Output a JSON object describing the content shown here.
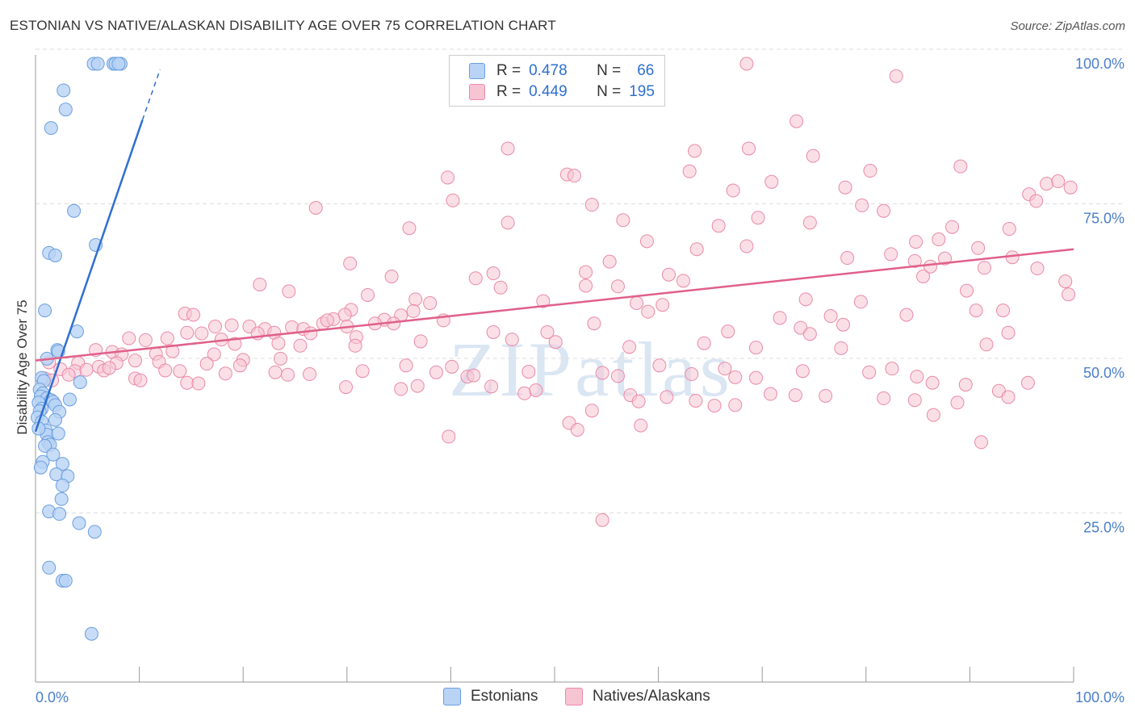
{
  "title": "ESTONIAN VS NATIVE/ALASKAN DISABILITY AGE OVER 75 CORRELATION CHART",
  "source": "Source: ZipAtlas.com",
  "watermark": "ZIPatlas",
  "colors": {
    "blue_fill": "#b9d3f5",
    "blue_stroke": "#6a9fe0",
    "blue_line": "#2f6fd0",
    "pink_fill": "#f7c4d4",
    "pink_stroke": "#e98aa8",
    "pink_line": "#e0608a",
    "grid": "#dddddd",
    "axis_text": "#4a7fc9"
  },
  "legend": {
    "rows": [
      {
        "r_label": "R =",
        "r_value": "0.478",
        "n_label": "N =",
        "n_value": "66"
      },
      {
        "r_label": "R =",
        "r_value": "0.449",
        "n_label": "N =",
        "n_value": "195"
      }
    ]
  },
  "bottom_legend": {
    "series1": "Estonians",
    "series2": "Natives/Alaskans"
  },
  "chart_data": {
    "type": "scatter",
    "title": "ESTONIAN VS NATIVE/ALASKAN DISABILITY AGE OVER 75 CORRELATION CHART",
    "xlabel": "",
    "ylabel": "Disability Age Over 75",
    "xlim": [
      0,
      100
    ],
    "ylim": [
      0,
      100
    ],
    "x_tick_labels": {
      "left": "0.0%",
      "right": "100.0%"
    },
    "y_ticks": [
      {
        "value": 100,
        "label": "100.0%"
      },
      {
        "value": 75,
        "label": "75.0%"
      },
      {
        "value": 50,
        "label": "50.0%"
      },
      {
        "value": 25,
        "label": "25.0%"
      }
    ],
    "grid": true,
    "series": [
      {
        "name": "Estonians",
        "trend": {
          "x0": 0,
          "y0": 40.5,
          "x1": 10.3,
          "y1": 90.9,
          "dash_to": {
            "x": 12.0,
            "y": 99.1
          }
        },
        "points": [
          [
            5.6,
            100
          ],
          [
            6.0,
            100
          ],
          [
            7.5,
            100
          ],
          [
            7.7,
            100
          ],
          [
            8.2,
            100
          ],
          [
            8.0,
            100
          ],
          [
            2.7,
            95.7
          ],
          [
            2.9,
            92.6
          ],
          [
            1.5,
            89.6
          ],
          [
            3.7,
            76.2
          ],
          [
            1.3,
            69.4
          ],
          [
            1.9,
            69.0
          ],
          [
            5.8,
            70.7
          ],
          [
            0.9,
            60.1
          ],
          [
            4.0,
            56.7
          ],
          [
            1.1,
            52.3
          ],
          [
            2.1,
            53.7
          ],
          [
            2.2,
            53.5
          ],
          [
            0.6,
            49.2
          ],
          [
            0.8,
            48.7
          ],
          [
            4.3,
            48.5
          ],
          [
            0.4,
            47.3
          ],
          [
            0.7,
            46.7
          ],
          [
            0.5,
            46.2
          ],
          [
            1.1,
            45.9
          ],
          [
            1.5,
            45.6
          ],
          [
            0.3,
            45.2
          ],
          [
            1.7,
            45.3
          ],
          [
            3.3,
            45.7
          ],
          [
            1.9,
            44.8
          ],
          [
            0.6,
            44.2
          ],
          [
            0.4,
            43.8
          ],
          [
            2.3,
            43.7
          ],
          [
            0.2,
            42.8
          ],
          [
            0.6,
            42.1
          ],
          [
            1.9,
            42.4
          ],
          [
            1.0,
            40.7
          ],
          [
            1.1,
            40.0
          ],
          [
            2.2,
            40.2
          ],
          [
            0.3,
            41.0
          ],
          [
            1.2,
            38.8
          ],
          [
            1.4,
            38.4
          ],
          [
            0.9,
            38.2
          ],
          [
            1.7,
            36.8
          ],
          [
            0.7,
            35.6
          ],
          [
            0.5,
            34.7
          ],
          [
            2.6,
            35.3
          ],
          [
            2.0,
            33.6
          ],
          [
            3.1,
            33.3
          ],
          [
            2.6,
            31.8
          ],
          [
            2.5,
            29.6
          ],
          [
            1.3,
            27.6
          ],
          [
            2.3,
            27.2
          ],
          [
            4.2,
            25.7
          ],
          [
            5.7,
            24.3
          ],
          [
            1.3,
            18.5
          ],
          [
            2.6,
            16.4
          ],
          [
            2.9,
            16.4
          ],
          [
            5.4,
            7.8
          ]
        ]
      },
      {
        "name": "Natives/Alaskans",
        "trend": {
          "x0": 0,
          "y0": 52.0,
          "x1": 100,
          "y1": 70.0
        },
        "points": [
          [
            68.5,
            100
          ],
          [
            82.9,
            98
          ],
          [
            73.3,
            90.7
          ],
          [
            45.5,
            86.3
          ],
          [
            68.7,
            86.3
          ],
          [
            63.5,
            85.9
          ],
          [
            74.9,
            85.1
          ],
          [
            80.4,
            82.7
          ],
          [
            89.1,
            83.4
          ],
          [
            51.2,
            82.1
          ],
          [
            51.9,
            81.9
          ],
          [
            63.0,
            82.6
          ],
          [
            70.9,
            80.9
          ],
          [
            39.7,
            81.6
          ],
          [
            97.4,
            80.6
          ],
          [
            98.5,
            81.0
          ],
          [
            99.7,
            80.0
          ],
          [
            67.2,
            79.5
          ],
          [
            78.0,
            80.0
          ],
          [
            95.7,
            78.9
          ],
          [
            40.2,
            77.9
          ],
          [
            53.6,
            77.2
          ],
          [
            79.6,
            77.1
          ],
          [
            27.0,
            76.7
          ],
          [
            81.7,
            76.2
          ],
          [
            96.4,
            77.8
          ],
          [
            69.6,
            75.1
          ],
          [
            56.6,
            74.7
          ],
          [
            45.5,
            74.3
          ],
          [
            74.6,
            74.3
          ],
          [
            93.8,
            73.3
          ],
          [
            36.0,
            73.4
          ],
          [
            65.8,
            73.8
          ],
          [
            88.3,
            73.6
          ],
          [
            84.8,
            71.2
          ],
          [
            87.0,
            71.6
          ],
          [
            58.9,
            71.3
          ],
          [
            63.7,
            70.0
          ],
          [
            68.5,
            70.5
          ],
          [
            82.4,
            69.2
          ],
          [
            90.8,
            70.2
          ],
          [
            94.1,
            68.7
          ],
          [
            78.2,
            68.6
          ],
          [
            84.7,
            68.1
          ],
          [
            87.6,
            68.5
          ],
          [
            55.3,
            68.0
          ],
          [
            30.3,
            67.7
          ],
          [
            53.0,
            66.3
          ],
          [
            42.4,
            65.3
          ],
          [
            61.0,
            65.9
          ],
          [
            34.3,
            65.6
          ],
          [
            44.1,
            66.1
          ],
          [
            85.5,
            65.6
          ],
          [
            86.2,
            67.2
          ],
          [
            89.7,
            63.3
          ],
          [
            91.4,
            67.0
          ],
          [
            96.5,
            66.9
          ],
          [
            99.2,
            64.8
          ],
          [
            21.6,
            64.3
          ],
          [
            24.4,
            63.2
          ],
          [
            44.8,
            63.8
          ],
          [
            53.0,
            64.1
          ],
          [
            56.1,
            64.0
          ],
          [
            62.4,
            64.9
          ],
          [
            74.2,
            61.9
          ],
          [
            79.5,
            61.5
          ],
          [
            83.9,
            59.4
          ],
          [
            99.5,
            62.7
          ],
          [
            32.0,
            62.6
          ],
          [
            36.6,
            61.9
          ],
          [
            38.0,
            61.3
          ],
          [
            48.9,
            61.6
          ],
          [
            57.9,
            61.3
          ],
          [
            60.4,
            61.0
          ],
          [
            30.4,
            60.2
          ],
          [
            29.8,
            59.4
          ],
          [
            33.6,
            58.6
          ],
          [
            35.2,
            59.3
          ],
          [
            36.4,
            60.0
          ],
          [
            90.6,
            60.1
          ],
          [
            93.2,
            60.1
          ],
          [
            14.4,
            59.6
          ],
          [
            15.2,
            59.4
          ],
          [
            27.7,
            58.0
          ],
          [
            28.7,
            58.7
          ],
          [
            30.0,
            57.5
          ],
          [
            32.7,
            58.0
          ],
          [
            34.5,
            58.0
          ],
          [
            59.0,
            59.9
          ],
          [
            71.7,
            58.9
          ],
          [
            76.6,
            59.2
          ],
          [
            77.8,
            57.8
          ],
          [
            18.9,
            57.7
          ],
          [
            20.6,
            57.5
          ],
          [
            22.1,
            57.1
          ],
          [
            23.0,
            56.5
          ],
          [
            24.7,
            57.4
          ],
          [
            25.8,
            57.1
          ],
          [
            28.1,
            58.5
          ],
          [
            14.6,
            56.5
          ],
          [
            16.0,
            56.4
          ],
          [
            17.3,
            57.5
          ],
          [
            21.4,
            56.4
          ],
          [
            26.5,
            56.4
          ],
          [
            30.9,
            55.8
          ],
          [
            39.3,
            58.5
          ],
          [
            44.1,
            56.6
          ],
          [
            45.9,
            55.4
          ],
          [
            49.3,
            56.6
          ],
          [
            53.8,
            58.0
          ],
          [
            66.7,
            56.7
          ],
          [
            73.7,
            57.3
          ],
          [
            74.6,
            56.3
          ],
          [
            93.7,
            56.5
          ],
          [
            9.0,
            55.6
          ],
          [
            10.6,
            55.3
          ],
          [
            12.7,
            55.6
          ],
          [
            13.2,
            53.5
          ],
          [
            17.9,
            55.4
          ],
          [
            19.2,
            54.7
          ],
          [
            23.4,
            54.8
          ],
          [
            25.5,
            54.4
          ],
          [
            30.8,
            54.4
          ],
          [
            37.1,
            55.1
          ],
          [
            50.1,
            55.0
          ],
          [
            57.2,
            54.2
          ],
          [
            64.4,
            54.8
          ],
          [
            69.4,
            54.1
          ],
          [
            77.6,
            54.0
          ],
          [
            91.6,
            54.6
          ],
          [
            5.8,
            53.7
          ],
          [
            7.4,
            53.4
          ],
          [
            8.3,
            53.0
          ],
          [
            11.6,
            53.1
          ],
          [
            17.2,
            53.0
          ],
          [
            20.0,
            52.1
          ],
          [
            23.6,
            52.3
          ],
          [
            1.3,
            51.7
          ],
          [
            4.1,
            51.6
          ],
          [
            6.1,
            51.0
          ],
          [
            7.8,
            51.6
          ],
          [
            9.6,
            52.0
          ],
          [
            11.9,
            51.8
          ],
          [
            16.5,
            51.5
          ],
          [
            19.7,
            51.2
          ],
          [
            35.7,
            51.2
          ],
          [
            40.1,
            51.0
          ],
          [
            60.1,
            51.2
          ],
          [
            66.4,
            50.7
          ],
          [
            73.9,
            50.3
          ],
          [
            82.5,
            50.7
          ],
          [
            2.4,
            50.6
          ],
          [
            3.8,
            50.3
          ],
          [
            4.9,
            50.5
          ],
          [
            6.6,
            50.4
          ],
          [
            7.1,
            50.8
          ],
          [
            12.5,
            50.4
          ],
          [
            13.9,
            50.3
          ],
          [
            18.3,
            49.9
          ],
          [
            23.1,
            50.1
          ],
          [
            24.3,
            49.7
          ],
          [
            26.4,
            49.8
          ],
          [
            31.5,
            50.3
          ],
          [
            38.6,
            50.1
          ],
          [
            41.6,
            49.4
          ],
          [
            42.2,
            49.6
          ],
          [
            47.5,
            50.2
          ],
          [
            54.6,
            50.0
          ],
          [
            56.1,
            49.5
          ],
          [
            63.2,
            49.8
          ],
          [
            67.4,
            49.3
          ],
          [
            69.4,
            49.2
          ],
          [
            80.3,
            50.1
          ],
          [
            84.9,
            49.4
          ],
          [
            86.4,
            48.4
          ],
          [
            89.6,
            48.1
          ],
          [
            95.6,
            48.4
          ],
          [
            0.9,
            49.1
          ],
          [
            1.6,
            48.8
          ],
          [
            3.2,
            49.7
          ],
          [
            9.6,
            49.1
          ],
          [
            10.1,
            48.8
          ],
          [
            14.6,
            48.4
          ],
          [
            15.7,
            48.3
          ],
          [
            29.9,
            47.7
          ],
          [
            35.2,
            47.4
          ],
          [
            36.8,
            47.9
          ],
          [
            43.9,
            47.8
          ],
          [
            47.1,
            46.7
          ],
          [
            48.2,
            47.2
          ],
          [
            57.3,
            46.4
          ],
          [
            60.8,
            46.1
          ],
          [
            70.8,
            46.6
          ],
          [
            73.2,
            46.4
          ],
          [
            76.1,
            46.3
          ],
          [
            81.7,
            45.9
          ],
          [
            84.7,
            45.6
          ],
          [
            88.8,
            45.2
          ],
          [
            92.8,
            47.1
          ],
          [
            93.7,
            46.1
          ],
          [
            53.6,
            43.9
          ],
          [
            58.1,
            45.4
          ],
          [
            63.6,
            45.5
          ],
          [
            65.4,
            44.7
          ],
          [
            67.4,
            44.8
          ],
          [
            86.5,
            43.2
          ],
          [
            39.8,
            39.7
          ],
          [
            51.4,
            41.9
          ],
          [
            52.2,
            40.8
          ],
          [
            58.3,
            41.5
          ],
          [
            91.1,
            38.8
          ],
          [
            54.6,
            26.2
          ]
        ]
      }
    ]
  }
}
